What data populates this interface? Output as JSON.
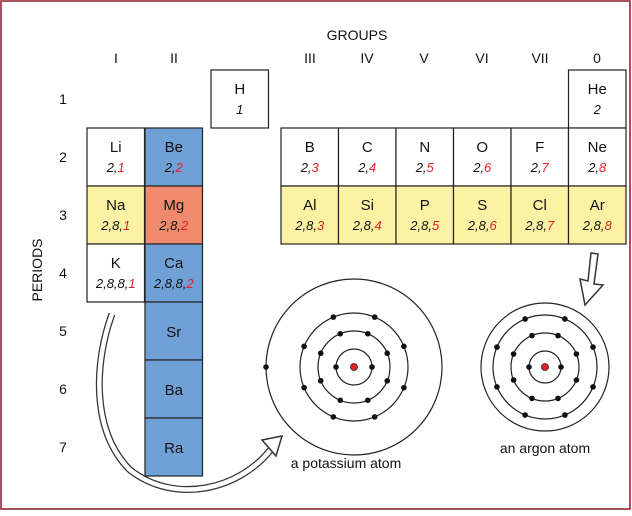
{
  "header": {
    "groups_title": "GROUPS",
    "periods_title": "PERIODS"
  },
  "groups": [
    "I",
    "II",
    "III",
    "IV",
    "V",
    "VI",
    "VII",
    "0"
  ],
  "periods": [
    "1",
    "2",
    "3",
    "4",
    "5",
    "6",
    "7"
  ],
  "elements": [
    {
      "symbol": "H",
      "config": "1"
    },
    {
      "symbol": "He",
      "config": "2"
    },
    {
      "symbol": "Li",
      "inner": "2,",
      "outer": "1"
    },
    {
      "symbol": "Be",
      "inner": "2,",
      "outer": "2"
    },
    {
      "symbol": "B",
      "inner": "2,",
      "outer": "3"
    },
    {
      "symbol": "C",
      "inner": "2,",
      "outer": "4"
    },
    {
      "symbol": "N",
      "inner": "2,",
      "outer": "5"
    },
    {
      "symbol": "O",
      "inner": "2,",
      "outer": "6"
    },
    {
      "symbol": "F",
      "inner": "2,",
      "outer": "7"
    },
    {
      "symbol": "Ne",
      "inner": "2,",
      "outer": "8"
    },
    {
      "symbol": "Na",
      "inner": "2,8,",
      "outer": "1"
    },
    {
      "symbol": "Mg",
      "inner": "2,8,",
      "outer": "2"
    },
    {
      "symbol": "Al",
      "inner": "2,8,",
      "outer": "3"
    },
    {
      "symbol": "Si",
      "inner": "2,8,",
      "outer": "4"
    },
    {
      "symbol": "P",
      "inner": "2,8,",
      "outer": "5"
    },
    {
      "symbol": "S",
      "inner": "2,8,",
      "outer": "6"
    },
    {
      "symbol": "Cl",
      "inner": "2,8,",
      "outer": "7"
    },
    {
      "symbol": "Ar",
      "inner": "2,8,",
      "outer": "8"
    },
    {
      "symbol": "K",
      "inner": "2,8,8,",
      "outer": "1"
    },
    {
      "symbol": "Ca",
      "inner": "2,8,8,",
      "outer": "2"
    },
    {
      "symbol": "Sr"
    },
    {
      "symbol": "Ba"
    },
    {
      "symbol": "Ra"
    }
  ],
  "captions": {
    "potassium": "a potassium atom",
    "argon": "an argon atom"
  }
}
